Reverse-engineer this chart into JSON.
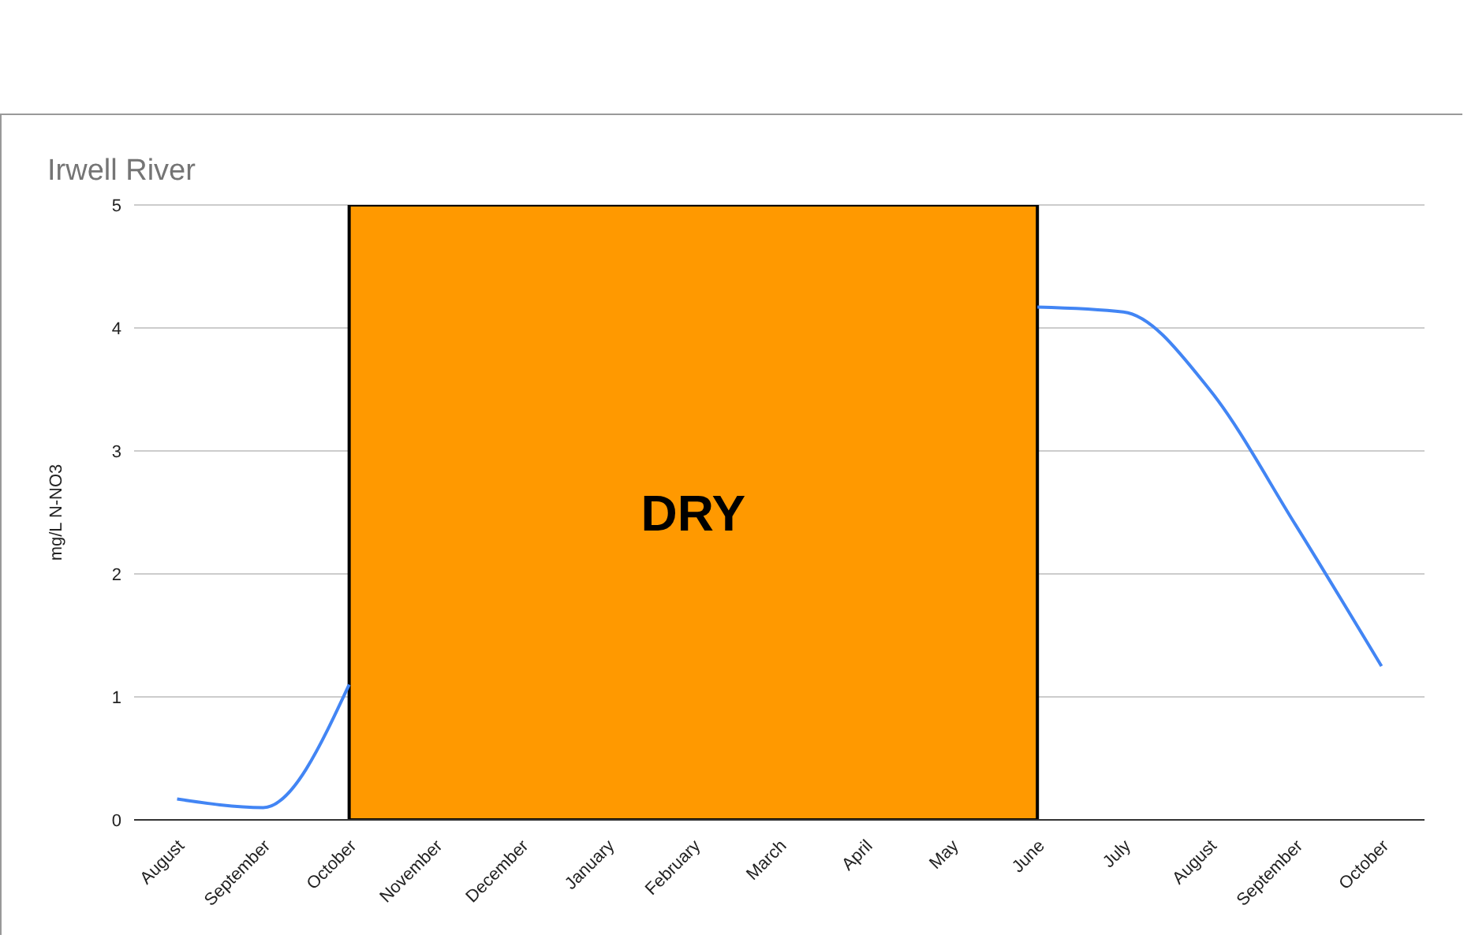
{
  "chart_data": {
    "type": "line",
    "title": "Irwell River",
    "ylabel": "mg/L N-NO3",
    "categories": [
      "August",
      "September",
      "October",
      "November",
      "December",
      "January",
      "February",
      "March",
      "April",
      "May",
      "June",
      "July",
      "August",
      "September",
      "October"
    ],
    "series": [
      {
        "color": "#4285f4",
        "values": [
          0.17,
          0.1,
          1.1,
          null,
          null,
          null,
          null,
          null,
          null,
          null,
          4.17,
          4.13,
          3.5,
          2.4,
          1.25
        ]
      }
    ],
    "ylim": [
      0,
      5
    ],
    "yticks": [
      0,
      1,
      2,
      3,
      4,
      5
    ],
    "grid": "y",
    "bands": [
      {
        "axis": "x",
        "from": "October",
        "to": "June",
        "label": "DRY",
        "color": "#ff9900"
      }
    ]
  }
}
